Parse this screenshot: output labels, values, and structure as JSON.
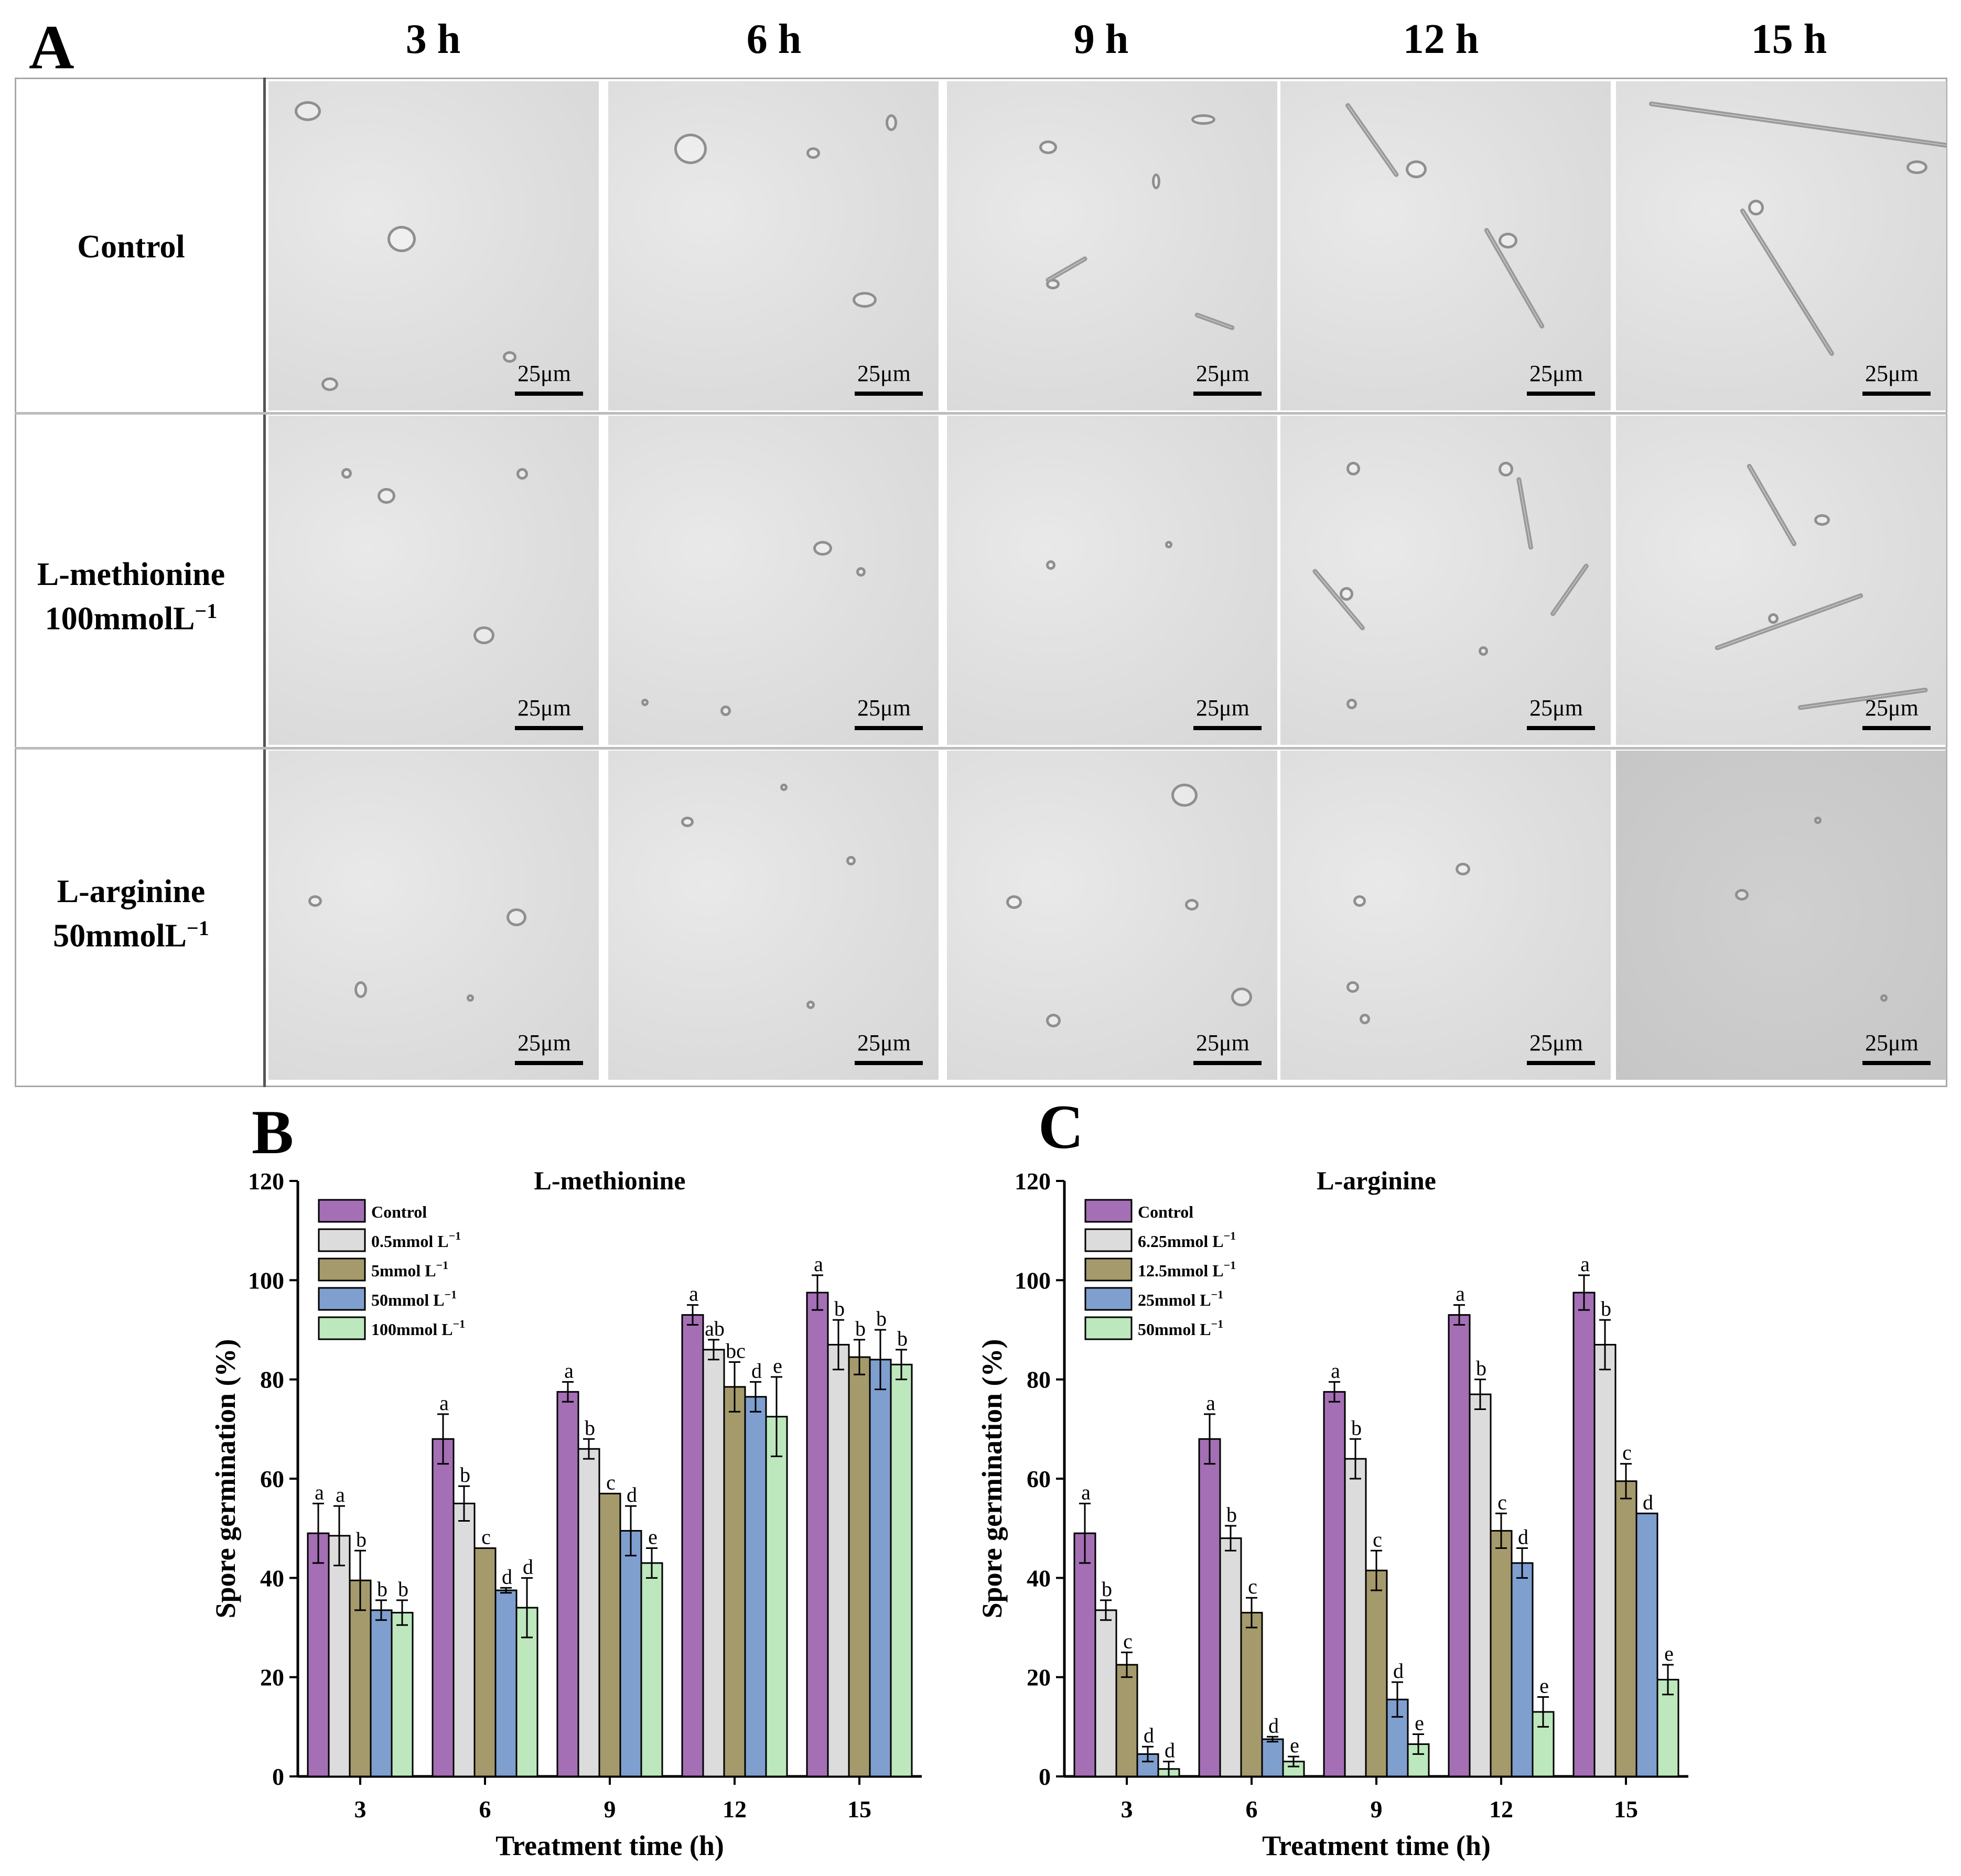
{
  "panel_labels": {
    "a": "A",
    "b": "B",
    "c": "C"
  },
  "panel_a": {
    "columns": [
      "3 h",
      "6 h",
      "9 h",
      "12 h",
      "15 h"
    ],
    "rows": [
      {
        "line1": "Control",
        "line2": "",
        "sup": ""
      },
      {
        "line1": "L-methionine",
        "line2": "100mmolL",
        "sup": "−1"
      },
      {
        "line1": "L-arginine",
        "line2": "50mmolL",
        "sup": "−1"
      }
    ],
    "scale_bar": "25μm"
  },
  "chart_data": [
    {
      "type": "bar",
      "title": "L-methionine",
      "xlabel": "Treatment time (h)",
      "ylabel": "Spore germination (%)",
      "ylim": [
        0,
        120
      ],
      "yticks": [
        0,
        20,
        40,
        60,
        80,
        100,
        120
      ],
      "categories": [
        "3",
        "6",
        "9",
        "12",
        "15"
      ],
      "legend_position": "top-left",
      "series": [
        {
          "name": "Control",
          "color": "#a46fb4",
          "values": [
            49,
            68,
            77.5,
            93,
            97.5
          ],
          "errors": [
            6,
            5,
            2,
            2,
            3.5
          ],
          "letters": [
            "a",
            "a",
            "a",
            "a",
            "a"
          ]
        },
        {
          "name": "0.5mmol L",
          "sup": "−1",
          "color": "#dcdcdc",
          "values": [
            48.5,
            55,
            66,
            86,
            87
          ],
          "errors": [
            6,
            3.5,
            2,
            2,
            5
          ],
          "letters": [
            "a",
            "b",
            "b",
            "ab",
            "b"
          ]
        },
        {
          "name": "5mmol L",
          "sup": "−1",
          "color": "#a59a6c",
          "values": [
            39.5,
            46,
            57,
            78.5,
            84.5
          ],
          "errors": [
            6,
            0,
            0,
            5,
            3.5
          ],
          "letters": [
            "b",
            "c",
            "c",
            "bc",
            "b"
          ]
        },
        {
          "name": "50mmol L",
          "sup": "−1",
          "color": "#7f9fcf",
          "values": [
            33.5,
            37.5,
            49.5,
            76.5,
            84
          ],
          "errors": [
            2,
            0.5,
            5,
            3,
            6
          ],
          "letters": [
            "b",
            "d",
            "d",
            "d",
            "b"
          ]
        },
        {
          "name": "100mmol L",
          "sup": "−1",
          "color": "#bde7bd",
          "values": [
            33,
            34,
            43,
            72.5,
            83
          ],
          "errors": [
            2.5,
            6,
            3,
            8,
            3
          ],
          "letters": [
            "b",
            "d",
            "e",
            "e",
            "b"
          ]
        }
      ]
    },
    {
      "type": "bar",
      "title": "L-arginine",
      "xlabel": "Treatment time (h)",
      "ylabel": "Spore germination (%)",
      "ylim": [
        0,
        120
      ],
      "yticks": [
        0,
        20,
        40,
        60,
        80,
        100,
        120
      ],
      "categories": [
        "3",
        "6",
        "9",
        "12",
        "15"
      ],
      "legend_position": "top-left",
      "series": [
        {
          "name": "Control",
          "color": "#a46fb4",
          "values": [
            49,
            68,
            77.5,
            93,
            97.5
          ],
          "errors": [
            6,
            5,
            2,
            2,
            3.5
          ],
          "letters": [
            "a",
            "a",
            "a",
            "a",
            "a"
          ]
        },
        {
          "name": "6.25mmol L",
          "sup": "−1",
          "color": "#dcdcdc",
          "values": [
            33.5,
            48,
            64,
            77,
            87
          ],
          "errors": [
            2,
            2.5,
            4,
            3,
            5
          ],
          "letters": [
            "b",
            "b",
            "b",
            "b",
            "b"
          ]
        },
        {
          "name": "12.5mmol L",
          "sup": "−1",
          "color": "#a59a6c",
          "values": [
            22.5,
            33,
            41.5,
            49.5,
            59.5
          ],
          "errors": [
            2.5,
            3,
            4,
            3.5,
            3.5
          ],
          "letters": [
            "c",
            "c",
            "c",
            "c",
            "c"
          ]
        },
        {
          "name": "25mmol L",
          "sup": "−1",
          "color": "#7f9fcf",
          "values": [
            4.5,
            7.5,
            15.5,
            43,
            53
          ],
          "errors": [
            1.5,
            0.5,
            3.5,
            3,
            0
          ],
          "letters": [
            "d",
            "d",
            "d",
            "d",
            "d"
          ]
        },
        {
          "name": "50mmol L",
          "sup": "−1",
          "color": "#bde7bd",
          "values": [
            1.5,
            3,
            6.5,
            13,
            19.5
          ],
          "errors": [
            1.5,
            1,
            2,
            3,
            3
          ],
          "letters": [
            "d",
            "e",
            "e",
            "e",
            "e"
          ]
        }
      ]
    }
  ]
}
